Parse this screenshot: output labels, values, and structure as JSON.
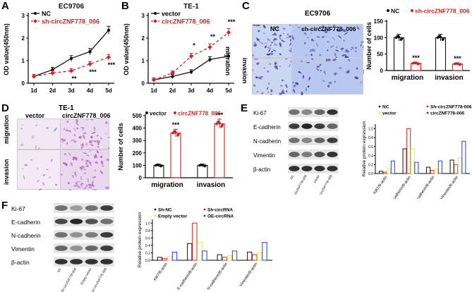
{
  "panels": {
    "a": "A",
    "b": "B",
    "c": "C",
    "d": "D",
    "e": "E",
    "f": "F"
  },
  "colors": {
    "black": "#111111",
    "red": "#d42020",
    "orange": "#f5a623",
    "blue": "#1f3fe0",
    "yellow": "#f2e23a",
    "purpleStain": "#6a3fb0",
    "pinkStain": "#c67bc9"
  },
  "chart_data": [
    {
      "id": "A",
      "type": "line",
      "title": "EC9706",
      "ylabel": "OD value(450nm)",
      "categories": [
        "1d",
        "2d",
        "3d",
        "4d",
        "5d"
      ],
      "ylim": [
        0,
        3
      ],
      "yticks": [
        "0",
        "1",
        "2",
        "3"
      ],
      "series": [
        {
          "name": "NC",
          "values": [
            0.3,
            0.6,
            1.1,
            1.4,
            2.35
          ],
          "color": "#111111",
          "style": "solid"
        },
        {
          "name": "sh-circZNF778_006",
          "values": [
            0.3,
            0.45,
            0.55,
            0.85,
            1.15
          ],
          "color": "#d42020",
          "style": "dashed"
        }
      ],
      "annotations": [
        {
          "x": "3d",
          "text": "**"
        },
        {
          "x": "4d",
          "text": "***"
        },
        {
          "x": "5d",
          "text": "***"
        }
      ]
    },
    {
      "id": "B",
      "type": "line",
      "title": "TE-1",
      "ylabel": "OD value(450nm)",
      "categories": [
        "1d",
        "2d",
        "3d",
        "4d",
        "5d"
      ],
      "ylim": [
        0,
        3
      ],
      "yticks": [
        "0",
        "1",
        "2",
        "3"
      ],
      "series": [
        {
          "name": "vector",
          "values": [
            0.15,
            0.3,
            0.5,
            1.05,
            1.2
          ],
          "color": "#111111",
          "style": "solid"
        },
        {
          "name": "circZNF778_006",
          "values": [
            0.15,
            0.45,
            1.2,
            1.6,
            2.25
          ],
          "color": "#d42020",
          "style": "dashed"
        }
      ],
      "annotations": [
        {
          "x": "3d",
          "text": "*"
        },
        {
          "x": "4d",
          "text": "**"
        },
        {
          "x": "5d",
          "text": "***"
        }
      ]
    },
    {
      "id": "C",
      "type": "bar",
      "ylabel": "Number of cells",
      "categories": [
        "migration",
        "invasion"
      ],
      "ylim": [
        0,
        150
      ],
      "yticks": [
        "0",
        "50",
        "100",
        "150"
      ],
      "series": [
        {
          "name": "NC",
          "values": [
            100,
            100
          ],
          "color": "#111111"
        },
        {
          "name": "sh-circZNF778_006",
          "values": [
            22,
            20
          ],
          "color": "#d42020"
        }
      ],
      "annotations": [
        {
          "x": "migration",
          "text": "***"
        },
        {
          "x": "invasion",
          "text": "***"
        }
      ]
    },
    {
      "id": "D",
      "type": "bar",
      "ylabel": "Number of cells",
      "categories": [
        "migration",
        "invasion"
      ],
      "ylim": [
        0,
        500
      ],
      "yticks": [
        "0",
        "100",
        "200",
        "300",
        "400",
        "500"
      ],
      "series": [
        {
          "name": "vector",
          "values": [
            100,
            100
          ],
          "color": "#111111"
        },
        {
          "name": "circZNF778_006",
          "values": [
            360,
            435
          ],
          "color": "#d42020"
        }
      ],
      "annotations": [
        {
          "x": "migration",
          "text": "***"
        },
        {
          "x": "invasion",
          "text": "***"
        }
      ]
    },
    {
      "id": "E",
      "type": "bar",
      "ylabel": "Relative protein expression",
      "categories": [
        "Ki67/B-actin",
        "E-cadherin/B-actin",
        "N-cadherin/B-actin",
        "Vimentin/B-actin"
      ],
      "ylim": [
        0,
        1.1
      ],
      "yticks": [
        "0.0",
        "0.2",
        "0.4",
        "0.6",
        "0.8",
        "1.0"
      ],
      "series": [
        {
          "name": "NC",
          "values": [
            0.05,
            0.55,
            0.14,
            0.3
          ],
          "color": "#111111"
        },
        {
          "name": "Sh-circZNF778-006",
          "values": [
            0.03,
            1.0,
            0.07,
            0.2
          ],
          "color": "#d42020"
        },
        {
          "name": "vector",
          "values": [
            0.1,
            0.55,
            0.1,
            0.35
          ],
          "color": "#f2e23a"
        },
        {
          "name": "circZNF778-006",
          "values": [
            0.28,
            0.25,
            0.28,
            0.72
          ],
          "color": "#1f3fe0"
        }
      ]
    },
    {
      "id": "F",
      "type": "bar",
      "ylabel": "Relative protein expression",
      "categories": [
        "Ki67/B-actin",
        "E-cadherin/B-actin",
        "N-cadherin/B-actin",
        "Vimentin/B-actin"
      ],
      "ylim": [
        0,
        1.1
      ],
      "yticks": [
        "0.0",
        "0.2",
        "0.4",
        "0.6",
        "0.8",
        "1.0"
      ],
      "series": [
        {
          "name": "Sh-NC",
          "values": [
            0.08,
            0.45,
            0.15,
            0.22
          ],
          "color": "#111111"
        },
        {
          "name": "Sh-circRNA",
          "values": [
            0.05,
            1.0,
            0.08,
            0.15
          ],
          "color": "#d42020"
        },
        {
          "name": "Empty vector",
          "values": [
            0.1,
            0.48,
            0.12,
            0.2
          ],
          "color": "#f2e23a"
        },
        {
          "name": "OE-circRNA",
          "values": [
            0.22,
            0.25,
            0.25,
            0.48
          ],
          "color": "#1f3fe0"
        }
      ]
    }
  ],
  "images": {
    "C": {
      "title": "EC9706",
      "col1": "NC",
      "col2": "sh-circZNF778_006",
      "row1": "migration",
      "row2": "invasion"
    },
    "D": {
      "title": "TE-1",
      "col1": "vector",
      "col2": "circZNF778_006",
      "row1": "migration",
      "row2": "invasion"
    }
  },
  "blots": {
    "E": {
      "rows": [
        "Ki-67",
        "E-cadherin",
        "N-cadherin",
        "Vimentin",
        "β-actin"
      ],
      "lanes": [
        "NC",
        "Sh-circZNF778-006",
        "vector",
        "circZNF778-006"
      ]
    },
    "F": {
      "rows": [
        "Ki-67",
        "E-cadherin",
        "N-cadherin",
        "Vimentin",
        "β-actin"
      ],
      "lanes": [
        "NC",
        "Sh-circZNF778-006",
        "Empty vector",
        "ov-circZNF778-006"
      ]
    }
  }
}
